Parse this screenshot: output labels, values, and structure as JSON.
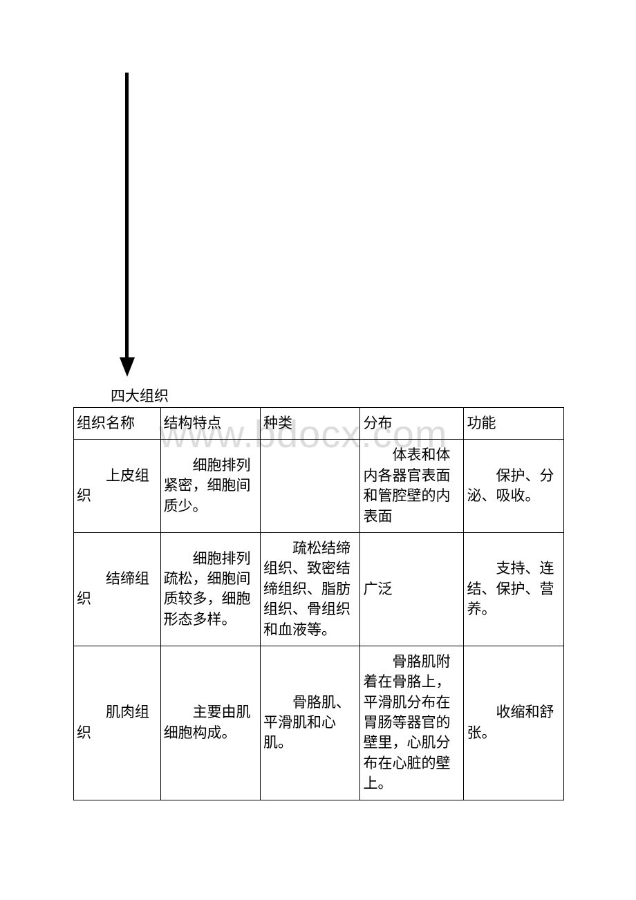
{
  "title": "四大组织",
  "watermark": "www.bdocx.com",
  "table": {
    "headers": {
      "name": "组织名称",
      "structure": "结构特点",
      "type": "种类",
      "distribution": "分布",
      "function": "功能"
    },
    "rows": [
      {
        "name": "上皮组织",
        "structure": "细胞排列紧密，细胞间质少。",
        "type": "",
        "distribution": "体表和体内各器官表面和管腔壁的内表面",
        "function": "保护、分泌、吸收。"
      },
      {
        "name": "结缔组织",
        "structure": "细胞排列疏松，细胞间质较多，细胞形态多样。",
        "type": "疏松结缔组织、致密结缔组织、脂肪组织、骨组织和血液等。",
        "distribution": "广泛",
        "function": "支持、连结、保护、营养。"
      },
      {
        "name": "肌肉组织",
        "structure": "主要由肌细胞构成。",
        "type": "骨胳肌、平滑肌和心肌。",
        "distribution": "骨胳肌附着在骨胳上，平滑肌分布在胃肠等器官的壁里，心肌分布在心脏的壁上。",
        "function": "收缩和舒张。"
      }
    ]
  },
  "colors": {
    "background": "#ffffff",
    "text": "#000000",
    "border": "#000000",
    "watermark": "#dcdcdc"
  }
}
